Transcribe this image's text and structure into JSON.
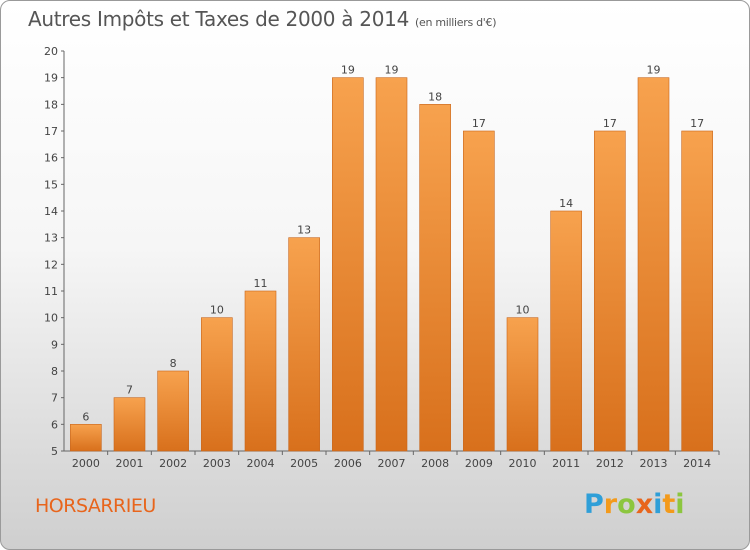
{
  "header": {
    "title": "Autres Impôts et Taxes de 2000 à 2014",
    "subtitle": "(en milliers d'€)"
  },
  "commune": "HORSARRIEU",
  "logo": {
    "text": "Proxiti",
    "letters": [
      "P",
      "r",
      "o",
      "x",
      "i",
      "t",
      "i"
    ]
  },
  "colors": {
    "bar_light": "#f7a24e",
    "bar_dark": "#d8701c",
    "commune": "#e8651c"
  },
  "chart_data": {
    "type": "bar",
    "title": "Autres Impôts et Taxes de 2000 à 2014",
    "subtitle": "(en milliers d'€)",
    "categories": [
      "2000",
      "2001",
      "2002",
      "2003",
      "2004",
      "2005",
      "2006",
      "2007",
      "2008",
      "2009",
      "2010",
      "2011",
      "2012",
      "2013",
      "2014"
    ],
    "values": [
      6,
      7,
      8,
      10,
      11,
      13,
      19,
      19,
      18,
      17,
      10,
      14,
      17,
      19,
      17
    ],
    "ylim": [
      5,
      20
    ],
    "yticks": [
      5,
      6,
      7,
      8,
      9,
      10,
      11,
      12,
      13,
      14,
      15,
      16,
      17,
      18,
      19,
      20
    ],
    "grid": false,
    "data_labels": true
  }
}
